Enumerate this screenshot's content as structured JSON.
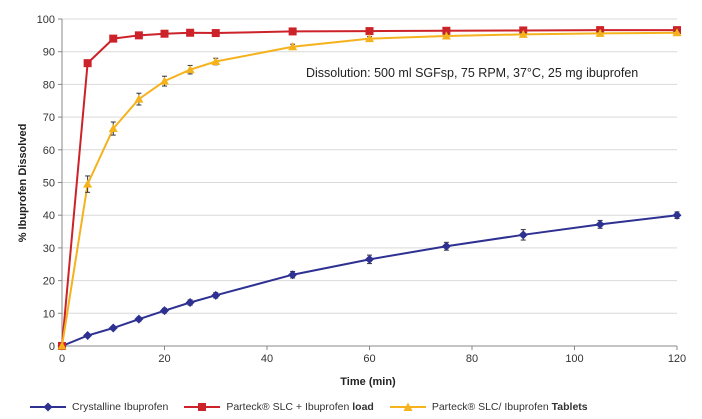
{
  "chart_data": {
    "type": "line",
    "title": "",
    "xlabel": "Time (min)",
    "ylabel": "% Ibuprofen Dissolved",
    "xlim": [
      0,
      120
    ],
    "ylim": [
      0,
      100
    ],
    "x_ticks": [
      0,
      20,
      40,
      60,
      80,
      100,
      120
    ],
    "y_ticks": [
      0,
      10,
      20,
      30,
      40,
      50,
      60,
      70,
      80,
      90,
      100
    ],
    "grid": "horizontal",
    "legend_position": "bottom",
    "annotation": "Dissolution: 500 ml SGFsp, 75 RPM, 37°C, 25 mg ibuprofen",
    "series": [
      {
        "name": "Crystalline Ibuprofen",
        "color": "#2e3192",
        "marker": "diamond",
        "x": [
          0,
          5,
          10,
          15,
          20,
          25,
          30,
          45,
          60,
          75,
          90,
          105,
          120
        ],
        "values": [
          0,
          3.2,
          5.5,
          8.2,
          10.8,
          13.3,
          15.5,
          21.8,
          26.5,
          30.5,
          34.0,
          37.2,
          40.0
        ],
        "errors": [
          0,
          0.4,
          0.5,
          0.6,
          0.7,
          0.8,
          0.8,
          1.0,
          1.3,
          1.2,
          1.6,
          1.2,
          1.0
        ]
      },
      {
        "name": "Parteck® SLC + Ibuprofen load",
        "name_plain": "Parteck® SLC + Ibuprofen",
        "name_bold": "load",
        "color": "#cc2229",
        "marker": "square",
        "x": [
          0,
          5,
          10,
          15,
          20,
          25,
          30,
          45,
          60,
          75,
          90,
          105,
          120
        ],
        "values": [
          0,
          86.5,
          94.0,
          95.0,
          95.5,
          95.8,
          95.7,
          96.2,
          96.3,
          96.4,
          96.5,
          96.6,
          96.6
        ],
        "errors": [
          0,
          0.8,
          0.6,
          0.5,
          0.5,
          0.5,
          0.5,
          0.5,
          0.5,
          0.5,
          0.5,
          0.5,
          0.5
        ]
      },
      {
        "name": "Parteck® SLC/ Ibuprofen Tablets",
        "name_plain": "Parteck® SLC/ Ibuprofen",
        "name_bold": "Tablets",
        "color": "#f5b21d",
        "marker": "triangle",
        "x": [
          0,
          5,
          10,
          15,
          20,
          25,
          30,
          45,
          60,
          75,
          90,
          105,
          120
        ],
        "values": [
          0,
          49.5,
          66.5,
          75.5,
          81.0,
          84.5,
          87.0,
          91.5,
          94.0,
          94.8,
          95.3,
          95.6,
          95.8
        ],
        "errors": [
          0,
          2.5,
          2.0,
          1.8,
          1.5,
          1.3,
          1.0,
          0.8,
          0.6,
          0.5,
          0.5,
          0.5,
          0.5
        ]
      }
    ]
  }
}
